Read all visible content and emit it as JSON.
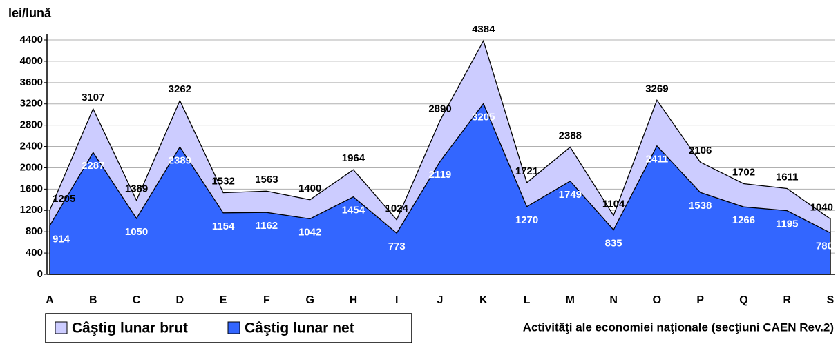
{
  "chart_data": {
    "type": "area",
    "title": "lei/lună",
    "x_label": "Activităţi ale economiei naţionale (secţiuni CAEN Rev.2)",
    "categories": [
      "A",
      "B",
      "C",
      "D",
      "E",
      "F",
      "G",
      "H",
      "I",
      "J",
      "K",
      "L",
      "M",
      "N",
      "O",
      "P",
      "Q",
      "R",
      "S"
    ],
    "series": [
      {
        "name": "Câştig lunar brut",
        "color": "#ccccff",
        "label_color": "#000000",
        "values": [
          1205,
          3107,
          1389,
          3262,
          1532,
          1563,
          1400,
          1964,
          1024,
          2890,
          4384,
          1721,
          2388,
          1104,
          3269,
          2106,
          1702,
          1611,
          1040
        ]
      },
      {
        "name": "Câştig lunar net",
        "color": "#3366ff",
        "label_color": "#ffffff",
        "values": [
          914,
          2287,
          1050,
          2389,
          1154,
          1162,
          1042,
          1454,
          773,
          2119,
          3205,
          1270,
          1749,
          835,
          2411,
          1538,
          1266,
          1195,
          780
        ]
      }
    ],
    "ylim": [
      0,
      4400
    ],
    "yticks": [
      0,
      400,
      800,
      1200,
      1600,
      2000,
      2400,
      2800,
      3200,
      3600,
      4000,
      4400
    ],
    "grid": true
  }
}
